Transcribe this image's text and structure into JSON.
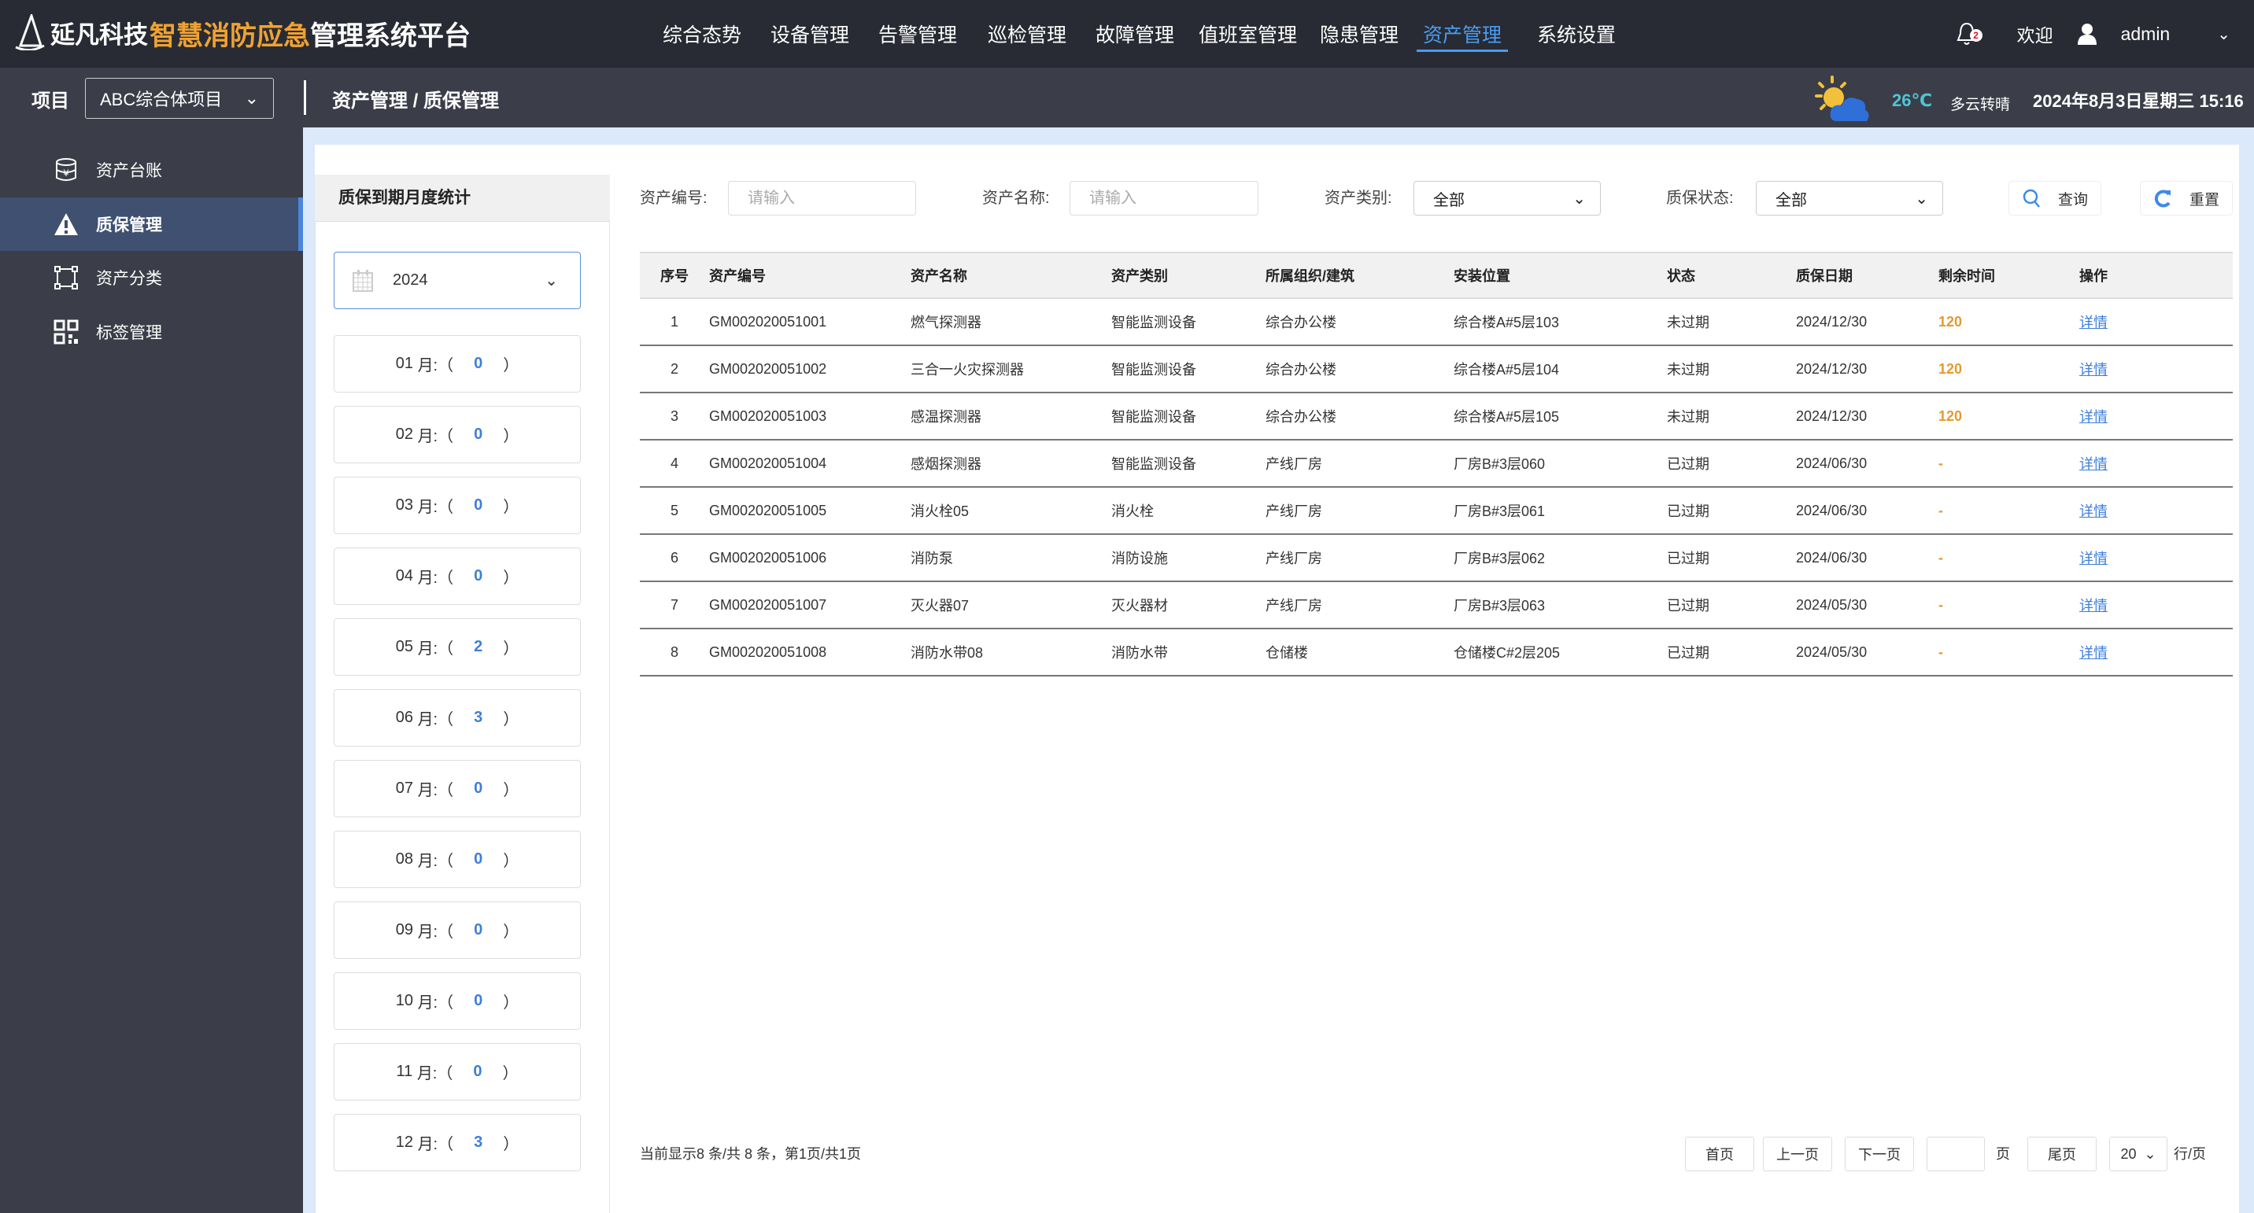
{
  "header": {
    "brand": "延凡科技",
    "title_highlight": "智慧消防应急",
    "title_rest": "管理系统平台",
    "nav": [
      "综合态势",
      "设备管理",
      "告警管理",
      "巡检管理",
      "故障管理",
      "值班室管理",
      "隐患管理",
      "资产管理",
      "系统设置"
    ],
    "active_nav": "资产管理",
    "notification_count": "2",
    "welcome": "欢迎",
    "user": "admin"
  },
  "subheader": {
    "project_label": "项目",
    "project_value": "ABC综合体项目",
    "breadcrumb": "资产管理 / 质保管理",
    "temperature": "26℃",
    "weather": "多云转晴",
    "datetime": "2024年8月3日星期三 15:16"
  },
  "sidebar": {
    "items": [
      {
        "label": "资产台账",
        "icon": "database-icon"
      },
      {
        "label": "质保管理",
        "icon": "warning-icon"
      },
      {
        "label": "资产分类",
        "icon": "category-icon"
      },
      {
        "label": "标签管理",
        "icon": "qrcode-icon"
      }
    ],
    "active": "质保管理"
  },
  "stats": {
    "title": "质保到期月度统计",
    "year": "2024",
    "months": [
      {
        "m": "01",
        "c": "0"
      },
      {
        "m": "02",
        "c": "0"
      },
      {
        "m": "03",
        "c": "0"
      },
      {
        "m": "04",
        "c": "0"
      },
      {
        "m": "05",
        "c": "2"
      },
      {
        "m": "06",
        "c": "3"
      },
      {
        "m": "07",
        "c": "0"
      },
      {
        "m": "08",
        "c": "0"
      },
      {
        "m": "09",
        "c": "0"
      },
      {
        "m": "10",
        "c": "0"
      },
      {
        "m": "11",
        "c": "0"
      },
      {
        "m": "12",
        "c": "3"
      }
    ],
    "month_suffix": "月:（",
    "close": "）"
  },
  "filters": {
    "asset_no_label": "资产编号:",
    "asset_name_label": "资产名称:",
    "placeholder": "请输入",
    "category_label": "资产类别:",
    "category_value": "全部",
    "status_label": "质保状态:",
    "status_value": "全部",
    "query": "查询",
    "reset": "重置"
  },
  "table": {
    "columns": [
      "序号",
      "资产编号",
      "资产名称",
      "资产类别",
      "所属组织/建筑",
      "安装位置",
      "状态",
      "质保日期",
      "剩余时间",
      "操作"
    ],
    "rows": [
      [
        "1",
        "GM002020051001",
        "燃气探测器",
        "智能监测设备",
        "综合办公楼",
        "综合楼A#5层103",
        "未过期",
        "2024/12/30",
        "120",
        "详情"
      ],
      [
        "2",
        "GM002020051002",
        "三合一火灾探测器",
        "智能监测设备",
        "综合办公楼",
        "综合楼A#5层104",
        "未过期",
        "2024/12/30",
        "120",
        "详情"
      ],
      [
        "3",
        "GM002020051003",
        "感温探测器",
        "智能监测设备",
        "综合办公楼",
        "综合楼A#5层105",
        "未过期",
        "2024/12/30",
        "120",
        "详情"
      ],
      [
        "4",
        "GM002020051004",
        "感烟探测器",
        "智能监测设备",
        "产线厂房",
        "厂房B#3层060",
        "已过期",
        "2024/06/30",
        "-",
        "详情"
      ],
      [
        "5",
        "GM002020051005",
        "消火栓05",
        "消火栓",
        "产线厂房",
        "厂房B#3层061",
        "已过期",
        "2024/06/30",
        "-",
        "详情"
      ],
      [
        "6",
        "GM002020051006",
        "消防泵",
        "消防设施",
        "产线厂房",
        "厂房B#3层062",
        "已过期",
        "2024/06/30",
        "-",
        "详情"
      ],
      [
        "7",
        "GM002020051007",
        "灭火器07",
        "灭火器材",
        "产线厂房",
        "厂房B#3层063",
        "已过期",
        "2024/05/30",
        "-",
        "详情"
      ],
      [
        "8",
        "GM002020051008",
        "消防水带08",
        "消防水带",
        "仓储楼",
        "仓储楼C#2层205",
        "已过期",
        "2024/05/30",
        "-",
        "详情"
      ]
    ]
  },
  "pagination": {
    "summary": "当前显示8 条/共 8 条，第1页/共1页",
    "first": "首页",
    "prev": "上一页",
    "next": "下一页",
    "page_unit": "页",
    "last": "尾页",
    "page_size": "20",
    "per_page": "行/页"
  },
  "colors": {
    "accent": "#4a9cf2",
    "highlight": "#f0a232",
    "remaining": "#e49a2e",
    "header_bg": "#282b33",
    "sidebar_bg": "#3b3e48"
  }
}
